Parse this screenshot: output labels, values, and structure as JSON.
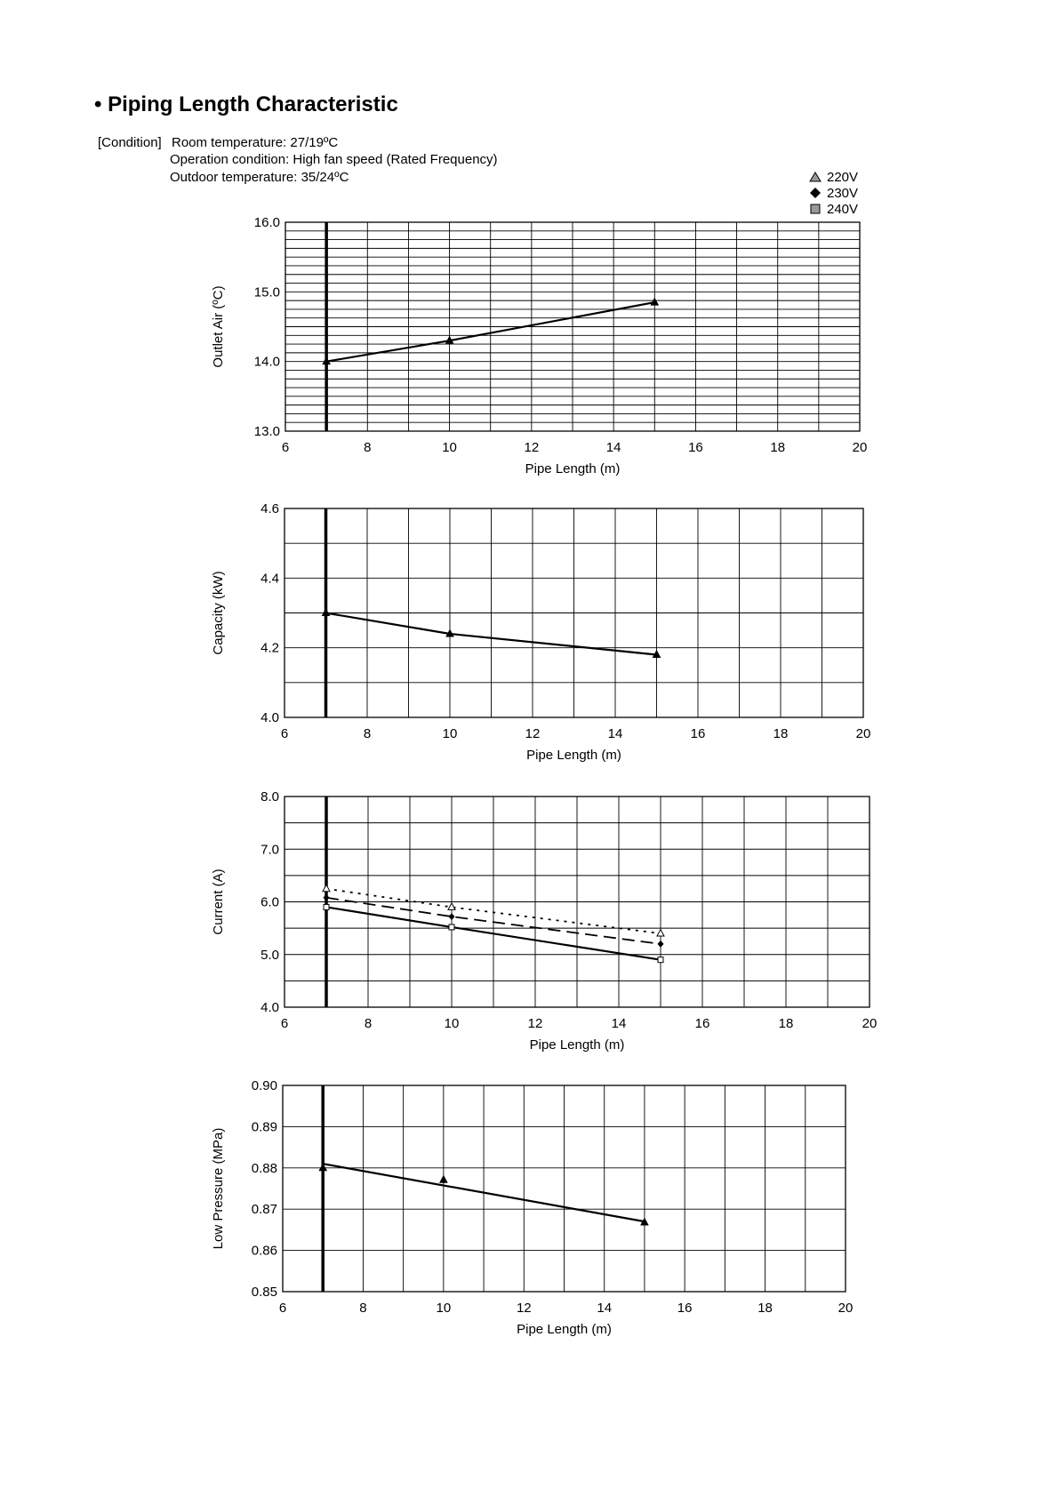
{
  "heading": "• Piping Length Characteristic",
  "condition": {
    "label": "[Condition]",
    "room": "Room temperature: 27/19ºC",
    "operation": "Operation condition: High fan speed (Rated Frequency)",
    "outdoor": "Outdoor temperature: 35/24ºC"
  },
  "legend": [
    {
      "label": "220V",
      "marker": "triangle"
    },
    {
      "label": "230V",
      "marker": "diamond"
    },
    {
      "label": "240V",
      "marker": "square"
    }
  ],
  "chart_data": [
    {
      "type": "line",
      "title": "",
      "xlabel": "Pipe Length (m)",
      "ylabel": "Outlet Air (ºC)",
      "xlim": [
        6,
        20
      ],
      "ylim": [
        13.0,
        16.0
      ],
      "xticks": [
        6,
        8,
        10,
        12,
        14,
        16,
        18,
        20
      ],
      "yticks": [
        13.0,
        14.0,
        15.0,
        16.0
      ],
      "ytick_labels": [
        "13.0",
        "14.0",
        "15.0",
        "16.0"
      ],
      "minor_y_divisions": 8,
      "x": [
        7,
        10,
        15
      ],
      "series": [
        {
          "name": "220V",
          "values": [
            14.0,
            14.3,
            14.85
          ]
        },
        {
          "name": "230V",
          "values": [
            14.0,
            14.3,
            14.85
          ]
        },
        {
          "name": "240V",
          "values": [
            14.0,
            14.3,
            14.85
          ]
        }
      ]
    },
    {
      "type": "line",
      "title": "",
      "xlabel": "Pipe Length (m)",
      "ylabel": "Capacity (kW)",
      "xlim": [
        6,
        20
      ],
      "ylim": [
        4.0,
        4.6
      ],
      "xticks": [
        6,
        8,
        10,
        12,
        14,
        16,
        18,
        20
      ],
      "yticks": [
        4.0,
        4.2,
        4.4,
        4.6
      ],
      "ytick_labels": [
        "4.0",
        "4.2",
        "4.4",
        "4.6"
      ],
      "minor_y_divisions": 2,
      "x": [
        7,
        10,
        15
      ],
      "series": [
        {
          "name": "220V",
          "values": [
            4.3,
            4.24,
            4.18
          ]
        },
        {
          "name": "230V",
          "values": [
            4.3,
            4.24,
            4.18
          ]
        },
        {
          "name": "240V",
          "values": [
            4.3,
            4.24,
            4.18
          ]
        }
      ]
    },
    {
      "type": "line",
      "title": "",
      "xlabel": "Pipe Length (m)",
      "ylabel": "Current (A)",
      "xlim": [
        6,
        20
      ],
      "ylim": [
        4.0,
        8.0
      ],
      "xticks": [
        6,
        8,
        10,
        12,
        14,
        16,
        18,
        20
      ],
      "yticks": [
        4.0,
        5.0,
        6.0,
        7.0,
        8.0
      ],
      "ytick_labels": [
        "4.0",
        "5.0",
        "6.0",
        "7.0",
        "8.0"
      ],
      "minor_y_divisions": 2,
      "x": [
        7,
        10,
        15
      ],
      "series": [
        {
          "name": "220V",
          "values": [
            6.25,
            5.9,
            5.4
          ]
        },
        {
          "name": "230V",
          "values": [
            6.08,
            5.72,
            5.2
          ]
        },
        {
          "name": "240V",
          "values": [
            5.9,
            5.52,
            4.9
          ]
        }
      ]
    },
    {
      "type": "line",
      "title": "",
      "xlabel": "Pipe Length (m)",
      "ylabel": "Low Pressure (MPa)",
      "xlim": [
        6,
        20
      ],
      "ylim": [
        0.85,
        0.9
      ],
      "xticks": [
        6,
        8,
        10,
        12,
        14,
        16,
        18,
        20
      ],
      "yticks": [
        0.85,
        0.86,
        0.87,
        0.88,
        0.89,
        0.9
      ],
      "ytick_labels": [
        "0.85",
        "0.86",
        "0.87",
        "0.88",
        "0.89",
        "0.90"
      ],
      "minor_y_divisions": 1,
      "x": [
        7,
        10,
        15
      ],
      "series": [
        {
          "name": "220V",
          "values": [
            0.88,
            0.8771,
            0.8668
          ]
        },
        {
          "name": "230V",
          "values": [
            0.88,
            0.8771,
            0.8668
          ]
        },
        {
          "name": "240V",
          "values": [
            0.88,
            0.8771,
            0.8668
          ]
        }
      ],
      "trendline": {
        "x": [
          7,
          15
        ],
        "y": [
          0.881,
          0.867
        ]
      }
    }
  ]
}
